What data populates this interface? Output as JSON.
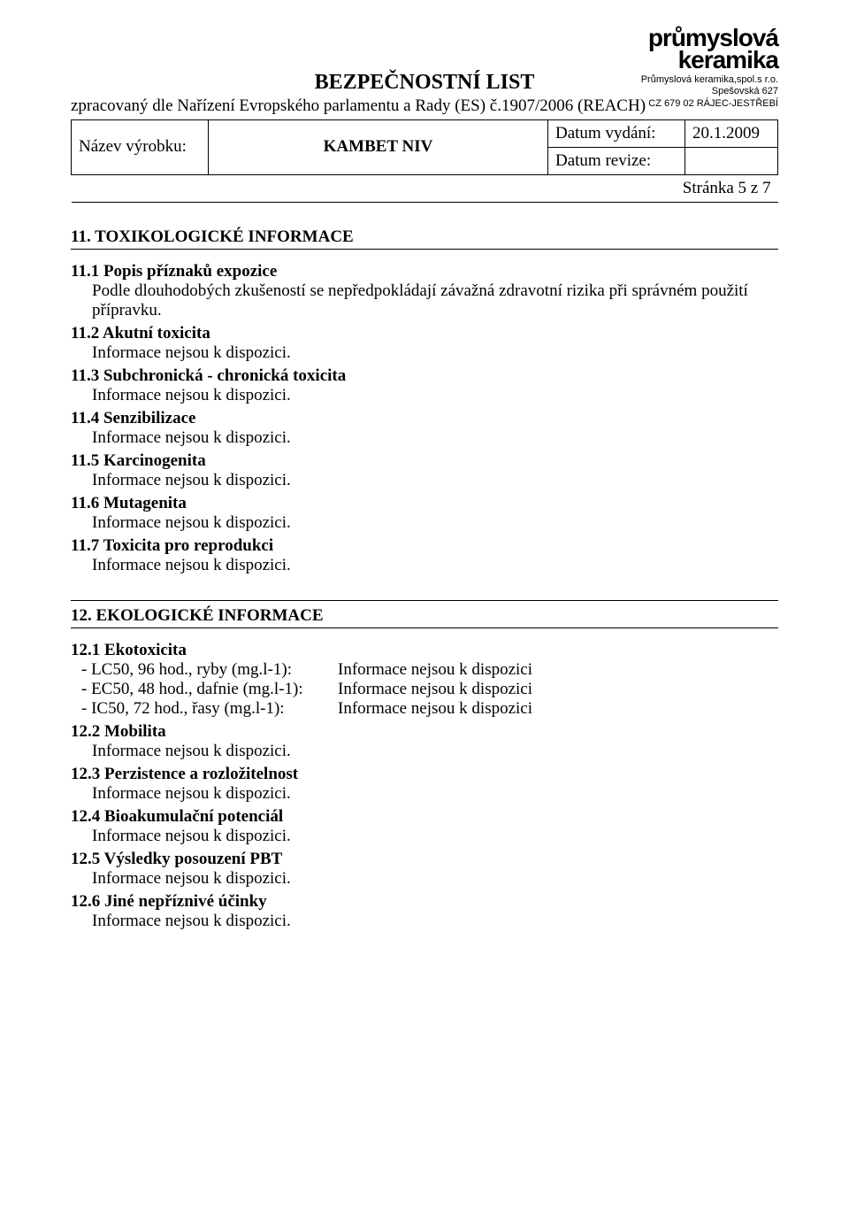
{
  "company": {
    "logo_line1": "průmyslová",
    "logo_line2": "keramika",
    "name": "Průmyslová keramika,spol.s r.o.",
    "addr1": "Spešovská 627",
    "addr2": "CZ 679 02 RÁJEC-JESTŘEBÍ"
  },
  "doc": {
    "title": "BEZPEČNOSTNÍ LIST",
    "subtitle": "zpracovaný dle Nařízení Evropského parlamentu a Rady (ES) č.1907/2006 (REACH)",
    "product_label": "Název výrobku:",
    "product_name": "KAMBET NIV",
    "issue_label": "Datum vydání:",
    "issue_date": "20.1.2009",
    "rev_label": "Datum revize:",
    "rev_date": "",
    "page": "Stránka 5 z 7"
  },
  "sec11": {
    "heading": "11. TOXIKOLOGICKÉ INFORMACE",
    "s1": {
      "h": "11.1 Popis příznaků expozice",
      "t": "Podle dlouhodobých zkušeností se nepředpokládají závažná zdravotní rizika při správném použití přípravku."
    },
    "s2": {
      "h": "11.2 Akutní toxicita",
      "t": "Informace nejsou k dispozici."
    },
    "s3": {
      "h": "11.3 Subchronická - chronická toxicita",
      "t": "Informace nejsou k dispozici."
    },
    "s4": {
      "h": "11.4 Senzibilizace",
      "t": "Informace nejsou k dispozici."
    },
    "s5": {
      "h": "11.5 Karcinogenita",
      "t": "Informace nejsou k dispozici."
    },
    "s6": {
      "h": "11.6 Mutagenita",
      "t": "Informace nejsou k dispozici."
    },
    "s7": {
      "h": "11.7 Toxicita pro reprodukci",
      "t": "Informace nejsou k dispozici."
    }
  },
  "sec12": {
    "heading": "12. EKOLOGICKÉ INFORMACE",
    "s1": {
      "h": "12.1 Ekotoxicita",
      "rows": [
        {
          "l": " - LC50, 96 hod., ryby (mg.l-1):",
          "v": "Informace nejsou k dispozici"
        },
        {
          "l": " - EC50, 48 hod., dafnie (mg.l-1):",
          "v": "Informace nejsou k dispozici"
        },
        {
          "l": " - IC50, 72 hod., řasy (mg.l-1):",
          "v": "Informace nejsou k dispozici"
        }
      ]
    },
    "s2": {
      "h": "12.2 Mobilita",
      "t": "Informace nejsou k dispozici."
    },
    "s3": {
      "h": "12.3 Perzistence a rozložitelnost",
      "t": "Informace nejsou k dispozici."
    },
    "s4": {
      "h": "12.4 Bioakumulační potenciál",
      "t": "Informace nejsou k dispozici."
    },
    "s5": {
      "h": "12.5 Výsledky posouzení PBT",
      "t": "Informace nejsou k dispozici."
    },
    "s6": {
      "h": "12.6 Jiné nepříznivé účinky",
      "t": "Informace nejsou k dispozici."
    }
  }
}
